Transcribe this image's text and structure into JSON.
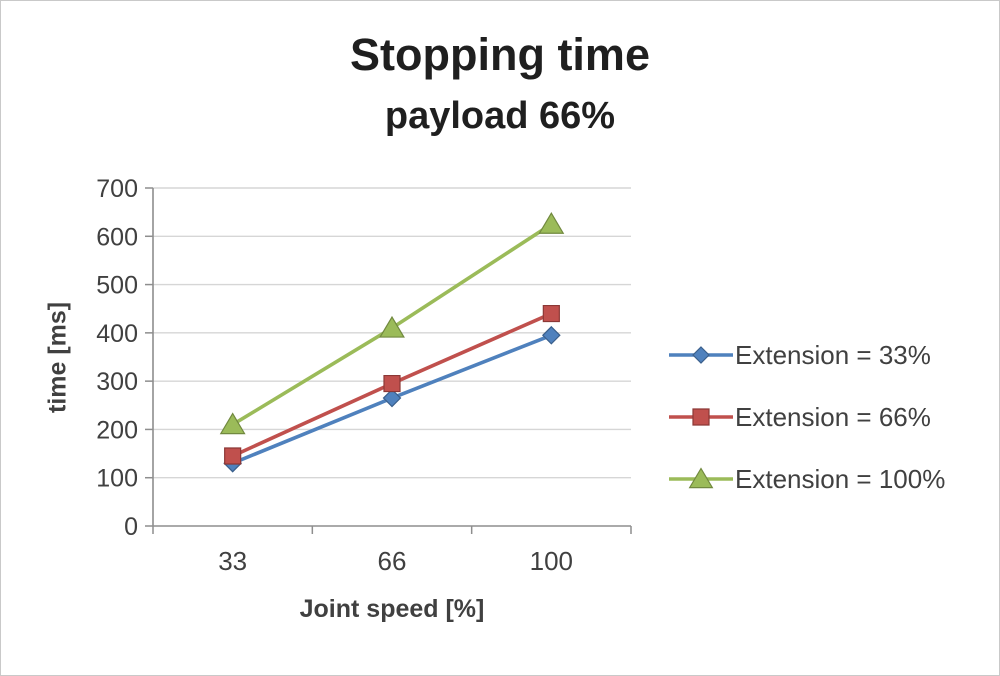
{
  "chart_data": {
    "type": "line",
    "title": "Stopping time",
    "subtitle": "payload 66%",
    "xlabel": "Joint speed [%]",
    "ylabel": "time [ms]",
    "categories": [
      "33",
      "66",
      "100"
    ],
    "series": [
      {
        "name": "Extension = 33%",
        "marker": "diamond",
        "color": "#4F81BD",
        "edge_color": "#3A5F8B",
        "values": [
          130,
          265,
          395
        ]
      },
      {
        "name": "Extension = 66%",
        "marker": "square",
        "color": "#C0504D",
        "edge_color": "#8C3836",
        "values": [
          145,
          295,
          440
        ]
      },
      {
        "name": "Extension = 100%",
        "marker": "triangle",
        "color": "#9BBB59",
        "edge_color": "#71893F",
        "values": [
          210,
          410,
          625
        ]
      }
    ],
    "ylim": [
      0,
      700
    ],
    "ytick_step": 100,
    "grid": true,
    "legend_position": "right"
  }
}
